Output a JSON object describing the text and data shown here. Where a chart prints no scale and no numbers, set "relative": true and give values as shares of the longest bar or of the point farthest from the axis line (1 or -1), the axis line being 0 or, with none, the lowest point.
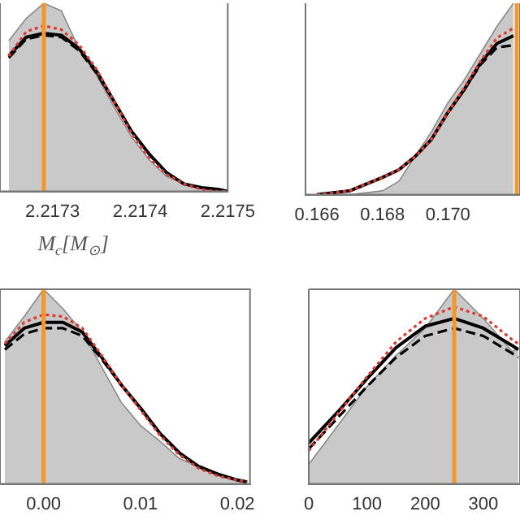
{
  "chart_data": [
    {
      "type": "line",
      "relative": true,
      "xlabel": "M$_{c}$[M$_{⊙}$]",
      "xlim": [
        2.21724,
        2.2175
      ],
      "xticks": [
        2.2173,
        2.2174,
        2.2175
      ],
      "tick_labels": "x",
      "x": [
        2.21725,
        2.21727,
        2.21729,
        2.21731,
        2.21733,
        2.21735,
        2.21737,
        2.21739,
        2.21741,
        2.21743,
        2.21745,
        2.21747,
        2.21749,
        2.2175
      ],
      "series": [
        {
          "type": "area",
          "color": "#c9c9c9",
          "values": [
            0.8,
            0.92,
            1,
            0.96,
            0.76,
            0.62,
            0.45,
            0.29,
            0.17,
            0.08,
            0.04,
            0.02,
            0,
            0
          ]
        },
        {
          "color": "#000000",
          "line_style": "solid",
          "values": [
            0.72,
            0.82,
            0.84,
            0.83,
            0.76,
            0.64,
            0.48,
            0.32,
            0.2,
            0.1,
            0.04,
            0.02,
            0.01,
            0
          ]
        },
        {
          "color": "#000000",
          "line_style": "dashed",
          "values": [
            0.71,
            0.81,
            0.83,
            0.82,
            0.75,
            0.63,
            0.48,
            0.32,
            0.2,
            0.1,
            0.04,
            0.02,
            0.01,
            0
          ]
        },
        {
          "color": "#e03a2f",
          "line_style": "dotted",
          "values": [
            0.72,
            0.85,
            0.88,
            0.86,
            0.78,
            0.65,
            0.48,
            0.31,
            0.18,
            0.09,
            0.04,
            0.01,
            0,
            0
          ]
        }
      ],
      "ref_lines": [
        {
          "axis": "x",
          "value": 2.21729,
          "color": "#f5962a"
        }
      ]
    },
    {
      "type": "line",
      "relative": true,
      "xlim": [
        0.16565,
        0.1722
      ],
      "xticks": [
        0.166,
        0.168,
        {
          "value": 0.17,
          "label": "0.170"
        }
      ],
      "tick_labels": "x",
      "x": [
        0.166,
        0.167,
        0.168,
        0.1685,
        0.169,
        0.1695,
        0.17,
        0.1705,
        0.171,
        0.1715,
        0.172
      ],
      "series": [
        {
          "type": "area",
          "color": "#c9c9c9",
          "values": [
            0,
            0,
            0.02,
            0.07,
            0.2,
            0.33,
            0.48,
            0.6,
            0.74,
            0.88,
            1
          ]
        },
        {
          "color": "#000000",
          "line_style": "solid",
          "values": [
            0,
            0.02,
            0.09,
            0.13,
            0.2,
            0.29,
            0.43,
            0.55,
            0.69,
            0.79,
            0.83
          ]
        },
        {
          "color": "#000000",
          "line_style": "dashed",
          "values": [
            0,
            0.02,
            0.09,
            0.13,
            0.2,
            0.29,
            0.43,
            0.55,
            0.68,
            0.77,
            0.78
          ]
        },
        {
          "color": "#e03a2f",
          "line_style": "dotted",
          "values": [
            0,
            0.02,
            0.09,
            0.13,
            0.2,
            0.29,
            0.43,
            0.56,
            0.7,
            0.82,
            0.87
          ]
        }
      ],
      "ref_lines": [
        {
          "axis": "x",
          "value": 0.1721,
          "color": "#f5962a"
        }
      ]
    },
    {
      "type": "line",
      "relative": true,
      "xlim": [
        -0.0045,
        0.0213
      ],
      "xticks": [
        {
          "value": 0,
          "label": "0.00"
        },
        0.01,
        0.02
      ],
      "tick_labels": "x",
      "x": [
        -0.004,
        -0.002,
        0,
        0.002,
        0.004,
        0.006,
        0.008,
        0.01,
        0.012,
        0.014,
        0.016,
        0.018,
        0.02,
        0.021
      ],
      "series": [
        {
          "type": "area",
          "color": "#c9c9c9",
          "values": [
            0.73,
            0.86,
            1,
            0.9,
            0.78,
            0.6,
            0.42,
            0.3,
            0.22,
            0.13,
            0.09,
            0.05,
            0.02,
            0.01
          ]
        },
        {
          "color": "#000000",
          "line_style": "solid",
          "values": [
            0.71,
            0.8,
            0.83,
            0.83,
            0.78,
            0.65,
            0.51,
            0.39,
            0.26,
            0.16,
            0.09,
            0.05,
            0.02,
            0.01
          ]
        },
        {
          "color": "#000000",
          "line_style": "dashed",
          "values": [
            0.69,
            0.77,
            0.8,
            0.8,
            0.76,
            0.64,
            0.51,
            0.39,
            0.26,
            0.16,
            0.09,
            0.05,
            0.02,
            0.01
          ]
        },
        {
          "color": "#e03a2f",
          "line_style": "dotted",
          "values": [
            0.72,
            0.83,
            0.87,
            0.86,
            0.8,
            0.66,
            0.51,
            0.38,
            0.25,
            0.15,
            0.08,
            0.04,
            0.02,
            0.01
          ]
        }
      ],
      "ref_lines": [
        {
          "axis": "x",
          "value": 0,
          "color": "#f5962a"
        }
      ]
    },
    {
      "type": "line",
      "relative": true,
      "xlim": [
        0,
        363
      ],
      "xticks": [
        0,
        100,
        200,
        300
      ],
      "tick_labels": "x",
      "x": [
        0,
        50,
        100,
        150,
        200,
        250,
        300,
        350,
        360
      ],
      "series": [
        {
          "type": "area",
          "color": "#c9c9c9",
          "values": [
            0.1,
            0.3,
            0.5,
            0.66,
            0.8,
            1,
            0.85,
            0.68,
            0.7
          ]
        },
        {
          "color": "#000000",
          "line_style": "solid",
          "values": [
            0.21,
            0.37,
            0.54,
            0.7,
            0.81,
            0.85,
            0.8,
            0.71,
            0.69
          ]
        },
        {
          "color": "#000000",
          "line_style": "dashed",
          "values": [
            0.18,
            0.34,
            0.5,
            0.65,
            0.76,
            0.8,
            0.76,
            0.67,
            0.65
          ]
        },
        {
          "color": "#e03a2f",
          "line_style": "dotted",
          "values": [
            0.17,
            0.36,
            0.55,
            0.73,
            0.85,
            0.91,
            0.86,
            0.74,
            0.72
          ]
        }
      ],
      "ref_lines": [
        {
          "axis": "x",
          "value": 250,
          "color": "#f5962a"
        }
      ]
    }
  ]
}
